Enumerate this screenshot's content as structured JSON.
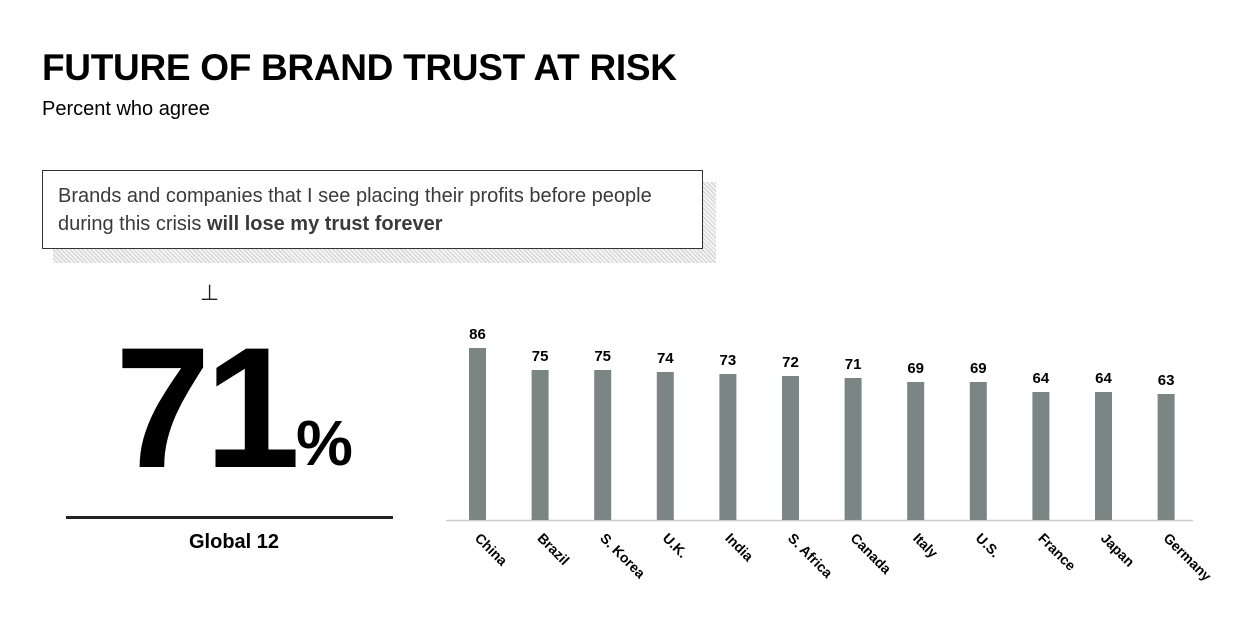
{
  "header": {
    "title": "FUTURE OF BRAND TRUST AT RISK",
    "subtitle": "Percent who agree"
  },
  "statement": {
    "text_plain": "Brands and companies that I see placing their profits before people during this crisis ",
    "text_bold": "will lose my trust forever"
  },
  "headline": {
    "value": "71",
    "unit": "%",
    "label": "Global 12"
  },
  "colors": {
    "bar": "#7b8584",
    "axis": "#cccccc"
  },
  "chart_data": {
    "type": "bar",
    "title": "",
    "xlabel": "",
    "ylabel": "",
    "categories": [
      "China",
      "Brazil",
      "S. Korea",
      "U.K.",
      "India",
      "S. Africa",
      "Canada",
      "Italy",
      "U.S.",
      "France",
      "Japan",
      "Germany"
    ],
    "values": [
      86,
      75,
      75,
      74,
      73,
      72,
      71,
      69,
      69,
      64,
      64,
      63
    ],
    "data_labels": true,
    "grid": false,
    "ylim": [
      0,
      100
    ]
  }
}
